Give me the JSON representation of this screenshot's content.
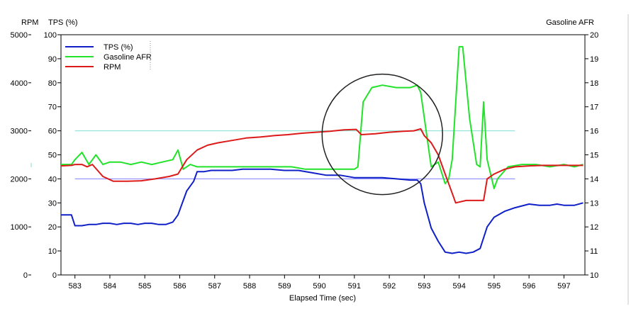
{
  "chart_data": {
    "type": "line",
    "title": "",
    "xlabel": "Elapsed Time (sec)",
    "xlim": [
      582.6,
      597.6
    ],
    "x_ticks": [
      583,
      584,
      585,
      586,
      587,
      588,
      589,
      590,
      591,
      592,
      593,
      594,
      595,
      596,
      597
    ],
    "axes": {
      "rpm": {
        "label": "RPM",
        "lim": [
          0,
          5000
        ],
        "ticks": [
          0,
          1000,
          2000,
          3000,
          4000,
          5000
        ],
        "side": "left-outer"
      },
      "tps": {
        "label": "TPS (%)",
        "lim": [
          0,
          100
        ],
        "ticks": [
          0,
          10,
          20,
          30,
          40,
          50,
          60,
          70,
          80,
          90,
          100
        ],
        "side": "left"
      },
      "afr": {
        "label": "Gasoline AFR",
        "lim": [
          10,
          20
        ],
        "ticks": [
          10,
          11,
          12,
          13,
          14,
          15,
          16,
          17,
          18,
          19,
          20
        ],
        "side": "right"
      }
    },
    "reference_lines": [
      {
        "axis": "tps",
        "y": 60,
        "x_start": 583,
        "x_end": 595.6,
        "color": "#7fe0d0"
      },
      {
        "axis": "tps",
        "y": 40,
        "x_start": 583,
        "x_end": 595.6,
        "color": "#7f7fff"
      }
    ],
    "annotation": {
      "type": "circle",
      "x": 591.8,
      "tps": 58.5
    },
    "grid": false,
    "legend_position": "top-left",
    "series": [
      {
        "name": "TPS (%)",
        "axis": "tps",
        "color": "#1020c8",
        "x": [
          582.6,
          582.9,
          583.0,
          583.2,
          583.4,
          583.6,
          583.8,
          584.0,
          584.2,
          584.4,
          584.6,
          584.8,
          585.0,
          585.2,
          585.4,
          585.6,
          585.8,
          585.95,
          586.2,
          586.4,
          586.5,
          586.7,
          586.9,
          587.2,
          587.5,
          587.8,
          588.2,
          588.6,
          589.0,
          589.4,
          589.8,
          590.2,
          590.6,
          591.0,
          591.4,
          591.8,
          592.2,
          592.6,
          592.8,
          592.9,
          593.0,
          593.2,
          593.4,
          593.6,
          593.8,
          594.0,
          594.2,
          594.4,
          594.6,
          594.8,
          595.0,
          595.3,
          595.6,
          596.0,
          596.3,
          596.6,
          596.8,
          597.0,
          597.3,
          597.55
        ],
        "values": [
          25,
          25,
          20.5,
          20.5,
          21,
          21,
          21.5,
          21.5,
          21,
          21.5,
          21.5,
          21,
          21.5,
          21.5,
          21,
          21,
          22,
          25,
          35,
          39,
          43,
          43,
          43.5,
          43.5,
          43.5,
          44,
          44,
          44,
          43.5,
          43.5,
          42.5,
          41.5,
          41.5,
          40.5,
          40.5,
          40.5,
          40,
          39.5,
          39.5,
          38,
          30,
          19.5,
          14,
          9.5,
          9,
          9.5,
          9,
          9.5,
          11,
          20,
          24,
          26.5,
          28,
          29.5,
          29,
          29,
          29.5,
          29,
          29,
          30
        ]
      },
      {
        "name": "Gasoline AFR",
        "axis": "afr",
        "color": "#22e22a",
        "x": [
          582.6,
          582.9,
          583.0,
          583.2,
          583.4,
          583.6,
          583.8,
          584.0,
          584.3,
          584.6,
          584.9,
          585.2,
          585.5,
          585.8,
          585.95,
          586.1,
          586.3,
          586.5,
          586.8,
          587.2,
          587.6,
          588.0,
          588.4,
          588.8,
          589.2,
          589.6,
          590.0,
          590.4,
          590.8,
          591.0,
          591.1,
          591.25,
          591.5,
          591.8,
          592.2,
          592.6,
          592.8,
          592.9,
          593.2,
          593.4,
          593.6,
          593.7,
          593.8,
          594.0,
          594.1,
          594.3,
          594.5,
          594.6,
          594.7,
          594.8,
          595.0,
          595.1,
          595.4,
          595.8,
          596.2,
          596.6,
          597.0,
          597.3,
          597.55
        ],
        "values": [
          14.6,
          14.6,
          14.8,
          15.1,
          14.6,
          15.0,
          14.6,
          14.7,
          14.7,
          14.6,
          14.7,
          14.6,
          14.7,
          14.8,
          15.2,
          14.4,
          14.6,
          14.5,
          14.5,
          14.5,
          14.5,
          14.5,
          14.5,
          14.5,
          14.5,
          14.4,
          14.4,
          14.4,
          14.4,
          14.4,
          14.5,
          17.2,
          17.8,
          17.9,
          17.8,
          17.8,
          17.9,
          17.6,
          14.5,
          14.7,
          13.8,
          14.0,
          14.8,
          19.5,
          19.5,
          16.5,
          14.6,
          14.5,
          17.2,
          14.8,
          13.6,
          14.0,
          14.5,
          14.6,
          14.6,
          14.5,
          14.6,
          14.5,
          14.6
        ]
      },
      {
        "name": "RPM",
        "axis": "rpm",
        "color": "#dd1a1a",
        "x": [
          582.6,
          582.9,
          583.0,
          583.2,
          583.35,
          583.5,
          583.8,
          584.1,
          584.5,
          584.9,
          585.3,
          585.7,
          585.95,
          586.2,
          586.5,
          586.8,
          587.1,
          587.5,
          587.9,
          588.3,
          588.7,
          589.1,
          589.5,
          589.9,
          590.3,
          590.7,
          591.05,
          591.2,
          591.6,
          592.0,
          592.4,
          592.7,
          592.9,
          593.0,
          593.2,
          593.4,
          593.6,
          593.8,
          593.9,
          594.2,
          594.5,
          594.7,
          594.8,
          595.0,
          595.3,
          595.6,
          596.0,
          596.4,
          596.8,
          597.2,
          597.55
        ],
        "values": [
          2270,
          2280,
          2300,
          2300,
          2250,
          2300,
          2050,
          1950,
          1950,
          1960,
          2000,
          2050,
          2100,
          2400,
          2600,
          2700,
          2750,
          2800,
          2850,
          2870,
          2900,
          2920,
          2950,
          2970,
          2990,
          3020,
          3030,
          2920,
          2940,
          2970,
          2990,
          3000,
          3040,
          2900,
          2750,
          2500,
          2100,
          1700,
          1500,
          1550,
          1550,
          1550,
          2000,
          2100,
          2200,
          2250,
          2270,
          2280,
          2280,
          2280,
          2280
        ]
      }
    ]
  }
}
